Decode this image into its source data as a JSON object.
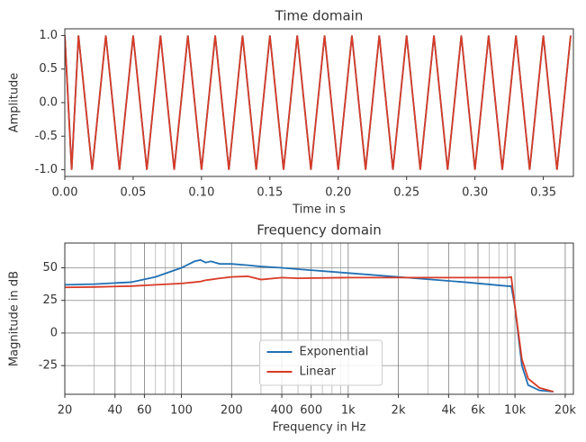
{
  "chart_data": [
    {
      "type": "line",
      "title": "Time domain",
      "xlabel": "Time in s",
      "ylabel": "Amplitude",
      "x": [
        0,
        0.005,
        0.01,
        0.02,
        0.03,
        0.04,
        0.05,
        0.06,
        0.07,
        0.08,
        0.09,
        0.1,
        0.11,
        0.12,
        0.13,
        0.14,
        0.15,
        0.16,
        0.17,
        0.18,
        0.19,
        0.2,
        0.21,
        0.22,
        0.23,
        0.24,
        0.25,
        0.26,
        0.27,
        0.28,
        0.29,
        0.3,
        0.31,
        0.32,
        0.33,
        0.34,
        0.35,
        0.36,
        0.37
      ],
      "series": [
        {
          "name": "Exponential",
          "color": "#2070b4",
          "values": [
            1,
            -1,
            1,
            -1,
            1,
            -1,
            1,
            -1,
            1,
            -1,
            1,
            -1,
            1,
            -1,
            1,
            -1,
            1,
            -1,
            1,
            -1,
            1,
            -1,
            1,
            -1,
            1,
            -1,
            1,
            -1,
            1,
            -1,
            1,
            -1,
            1,
            -1,
            1,
            -1,
            1,
            -1,
            1
          ]
        },
        {
          "name": "Linear",
          "color": "#d83b26",
          "values": [
            1,
            -1,
            1,
            -1,
            1,
            -1,
            1,
            -1,
            1,
            -1,
            1,
            -1,
            1,
            -1,
            1,
            -1,
            1,
            -1,
            1,
            -1,
            1,
            -1,
            1,
            -1,
            1,
            -1,
            1,
            -1,
            1,
            -1,
            1,
            -1,
            1,
            -1,
            1,
            -1,
            1,
            -1,
            1
          ]
        }
      ],
      "xlim": [
        0,
        0.372
      ],
      "ylim": [
        -1.1,
        1.1
      ],
      "xticks": [
        {
          "value": 0,
          "label": "0.00"
        },
        0.05,
        {
          "value": 0.1,
          "label": "0.10"
        },
        0.15,
        {
          "value": 0.2,
          "label": "0.20"
        },
        0.25,
        {
          "value": 0.3,
          "label": "0.30"
        },
        0.35
      ],
      "yticks": [
        {
          "value": -1,
          "label": "-1.0"
        },
        -0.5,
        {
          "value": 0,
          "label": "0.0"
        },
        0.5,
        {
          "value": 1,
          "label": "1.0"
        }
      ],
      "grid": false,
      "log_x": false
    },
    {
      "type": "line",
      "title": "Frequency domain",
      "xlabel": "Frequency in Hz",
      "ylabel": "Magnitude in dB",
      "x": [
        20,
        30,
        50,
        70,
        100,
        120,
        130,
        140,
        150,
        170,
        200,
        250,
        300,
        400,
        500,
        1000,
        2000,
        5000,
        9000,
        9500,
        10000,
        11000,
        12000,
        14000,
        17000
      ],
      "series": [
        {
          "name": "Exponential",
          "color": "#2070b4",
          "values": [
            37,
            37.5,
            39,
            43,
            50,
            55,
            56,
            54,
            55,
            53,
            53,
            52,
            51,
            50,
            49,
            46,
            43,
            39,
            36,
            36,
            20,
            -25,
            -40,
            -44,
            -45
          ]
        },
        {
          "name": "Linear",
          "color": "#d83b26",
          "values": [
            35,
            35.3,
            36,
            37,
            38,
            39,
            39.5,
            40.5,
            41,
            42,
            43,
            43.5,
            41,
            42.5,
            42,
            42.5,
            42.5,
            42.5,
            42.5,
            43,
            20,
            -20,
            -35,
            -42,
            -45
          ]
        }
      ],
      "xlim": [
        20,
        22400
      ],
      "ylim": [
        -47,
        69
      ],
      "xticks": [
        20,
        40,
        60,
        100,
        200,
        400,
        600,
        {
          "value": 1000,
          "label": "1k"
        },
        {
          "value": 2000,
          "label": "2k"
        },
        {
          "value": 4000,
          "label": "4k"
        },
        {
          "value": 6000,
          "label": "6k"
        },
        {
          "value": 10000,
          "label": "10k"
        },
        {
          "value": 20000,
          "label": "20k"
        }
      ],
      "yticks": [
        -25,
        0,
        25,
        50
      ],
      "grid": true,
      "log_x": true,
      "legend": "lower center"
    }
  ]
}
